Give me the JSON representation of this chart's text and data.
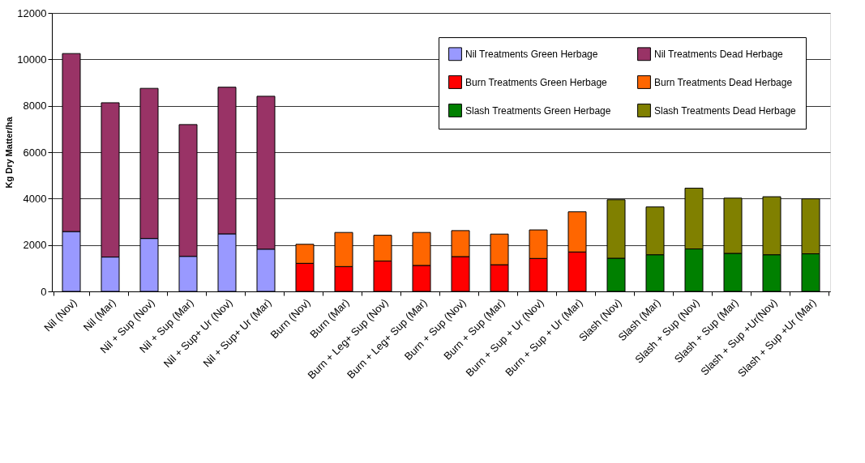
{
  "chart_data": {
    "type": "bar",
    "stacked": true,
    "ylabel": "Kg Dry Matter/ha",
    "categories": [
      "Nil (Nov)",
      "Nil (Mar)",
      "Nil + Sup (Nov)",
      "Nil + Sup (Mar)",
      "Nil + Sup+ Ur (Nov)",
      "Nil + Sup+ Ur (Mar)",
      "Burn (Nov)",
      "Burn (Mar)",
      "Burn + Leg+ Sup (Nov)",
      "Burn + Leg+ Sup (Mar)",
      "Burn + Sup (Nov)",
      "Burn + Sup (Mar)",
      "Burn + Sup + Ur (Nov)",
      "Burn + Sup + Ur (Mar)",
      "Slash (Nov)",
      "Slash (Mar)",
      "Slash + Sup (Nov)",
      "Slash + Sup (Mar)",
      "Slash + Sup +Ur(Nov)",
      "Slash + Sup +Ur (Mar)"
    ],
    "series": [
      {
        "name": "Nil Treatments Green Herbage",
        "color": "#9999ff",
        "values": [
          2580,
          1480,
          2280,
          1510,
          2480,
          1820,
          null,
          null,
          null,
          null,
          null,
          null,
          null,
          null,
          null,
          null,
          null,
          null,
          null,
          null
        ]
      },
      {
        "name": "Nil Treatments Dead Herbage",
        "color": "#993366",
        "values": [
          7670,
          6650,
          6470,
          5680,
          6320,
          6590,
          null,
          null,
          null,
          null,
          null,
          null,
          null,
          null,
          null,
          null,
          null,
          null,
          null,
          null
        ]
      },
      {
        "name": "Burn Treatments Green Herbage",
        "color": "#ff0000",
        "values": [
          null,
          null,
          null,
          null,
          null,
          null,
          1210,
          1070,
          1310,
          1120,
          1500,
          1150,
          1420,
          1700,
          null,
          null,
          null,
          null,
          null,
          null
        ]
      },
      {
        "name": "Burn Treatments Dead Herbage",
        "color": "#ff6600",
        "values": [
          null,
          null,
          null,
          null,
          null,
          null,
          820,
          1470,
          1110,
          1420,
          1120,
          1320,
          1230,
          1730,
          null,
          null,
          null,
          null,
          null,
          null
        ]
      },
      {
        "name": "Slash Treatments Green Herbage",
        "color": "#008000",
        "values": [
          null,
          null,
          null,
          null,
          null,
          null,
          null,
          null,
          null,
          null,
          null,
          null,
          null,
          null,
          1430,
          1580,
          1830,
          1640,
          1580,
          1620
        ]
      },
      {
        "name": "Slash Treatments Dead Herbage",
        "color": "#808000",
        "values": [
          null,
          null,
          null,
          null,
          null,
          null,
          null,
          null,
          null,
          null,
          null,
          null,
          null,
          null,
          2520,
          2060,
          2620,
          2380,
          2500,
          2370
        ]
      }
    ],
    "ylim": [
      0,
      12000
    ],
    "yticks": [
      0,
      2000,
      4000,
      6000,
      8000,
      10000,
      12000
    ],
    "grid": "y",
    "legend": "top right"
  }
}
